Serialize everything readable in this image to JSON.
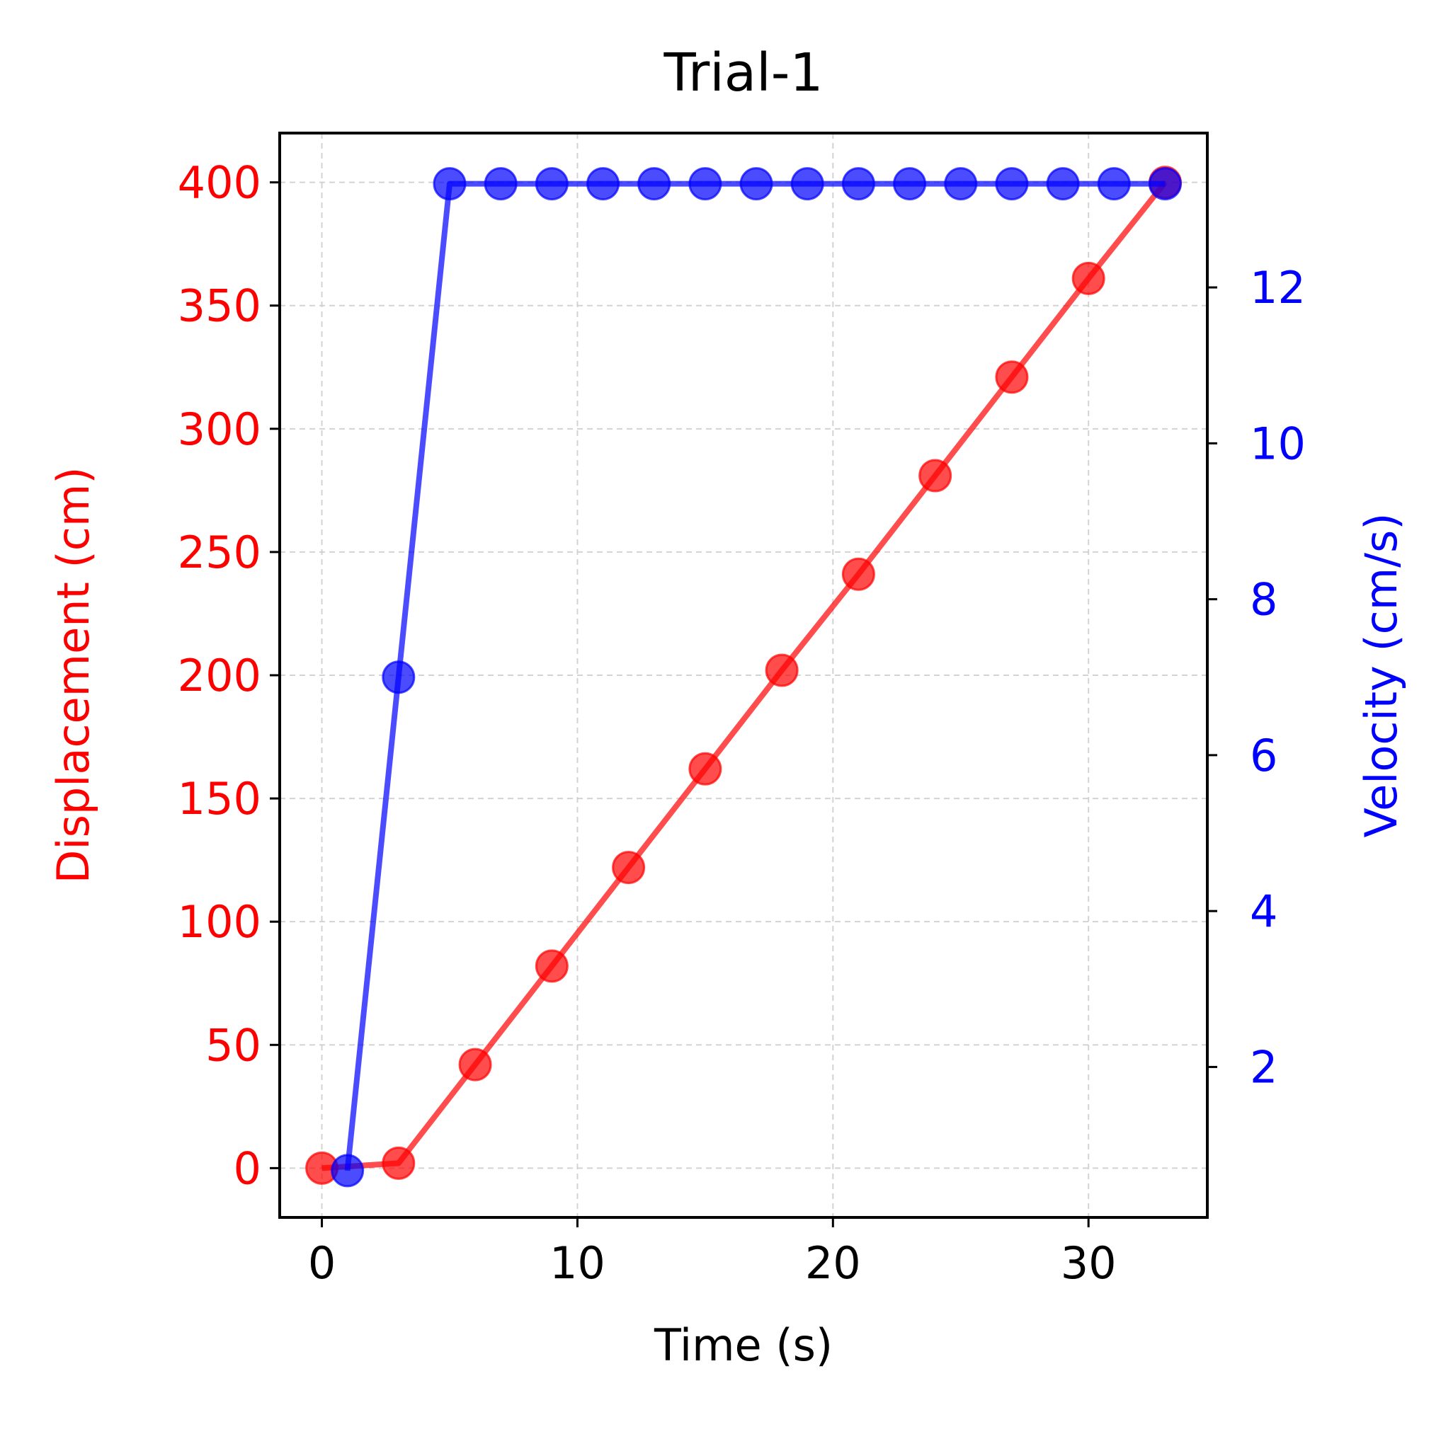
{
  "chart_data": {
    "type": "line",
    "title": "Trial-1",
    "xlabel": "Time (s)",
    "ylabel": "Displacement (cm)",
    "y2label": "Velocity (cm/s)",
    "xlim": [
      -1.65,
      34.65
    ],
    "ylim": [
      -20,
      420
    ],
    "y2lim": [
      0.07,
      13.98
    ],
    "x_ticks": [
      0,
      10,
      20,
      30
    ],
    "y_ticks": [
      0,
      50,
      100,
      150,
      200,
      250,
      300,
      350,
      400
    ],
    "y2_ticks": [
      2,
      4,
      6,
      8,
      10,
      12
    ],
    "grid": true,
    "legend": "none",
    "series": [
      {
        "axis": "left",
        "color": "#ff0000",
        "x": [
          0,
          3,
          6,
          9,
          12,
          15,
          18,
          21,
          24,
          27,
          30,
          33
        ],
        "y": [
          0,
          2,
          42,
          82,
          122,
          162,
          202,
          241,
          281,
          321,
          361,
          400
        ]
      },
      {
        "axis": "right",
        "color": "#0000ff",
        "x": [
          1,
          3,
          5,
          7,
          9,
          11,
          13,
          15,
          17,
          19,
          21,
          23,
          25,
          27,
          29,
          31,
          33
        ],
        "y": [
          0.67,
          7.0,
          13.33,
          13.33,
          13.33,
          13.33,
          13.33,
          13.33,
          13.33,
          13.33,
          13.33,
          13.33,
          13.33,
          13.33,
          13.33,
          13.33,
          13.33
        ]
      }
    ]
  }
}
